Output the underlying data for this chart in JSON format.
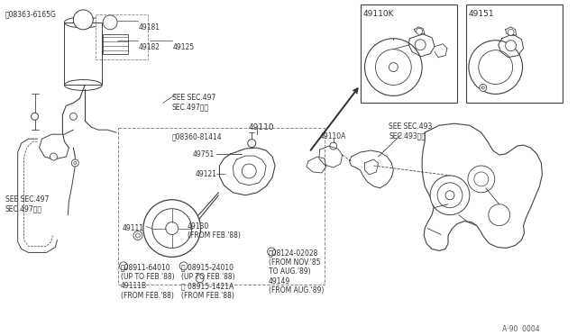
{
  "bg_color": "#ffffff",
  "lc": "#404040",
  "tc": "#303030",
  "fig_w": 6.4,
  "fig_h": 3.72,
  "dpi": 100,
  "diagram_number": "A·90  0004",
  "labels": {
    "s08363": "Ⓢ08363-6165G",
    "49181": "49181",
    "49182": "49182",
    "49125": "49125",
    "see497a": "SEE SEC.497\nSEC.497参照",
    "see497b": "SEE SEC.497\nSEC.497参照",
    "49110": "49110",
    "s08360": "Ⓢ08360-81414",
    "49751": "49751",
    "49110A": "49110A",
    "49121": "49121",
    "49111": "49111",
    "49130": "49130\n(FROM FEB.'88)",
    "49110K": "49110K",
    "49151": "49151",
    "see493": "SEE SEC.493\nSEC.493参照",
    "n08911": "Ⓢ08911-64010\n(UP TO FEB.'88)\n49111B\n(FROM FEB.'88)",
    "m08915": "Ⓡ 08915-24010\n(UP TO FEB.'88)\nⓇ 08915-1421A\n(FROM FEB.'88)",
    "b08124": "Ⓐ08124-02028\n(FROM NOV.'85\nTO AUG.'89)\n49149\n(FROM AUG.'89)"
  }
}
